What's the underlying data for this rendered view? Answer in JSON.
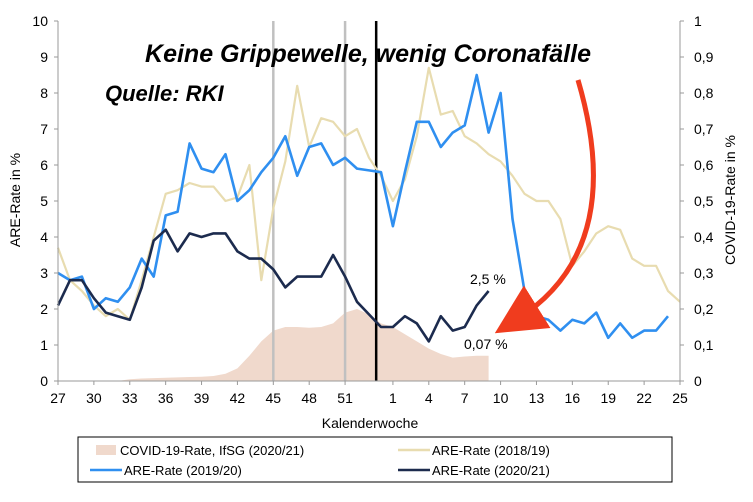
{
  "chart_data": {
    "type": "line",
    "title": "Keine Grippewelle, wenig Coronafälle",
    "subtitle": "Quelle: RKI",
    "xlabel": "Kalenderwoche",
    "ylabel_left": "ARE-Rate in %",
    "ylabel_right": "COVID-19-Rate in %",
    "ylim_left": [
      0,
      10
    ],
    "ylim_right": [
      0,
      1
    ],
    "y_ticks_left": [
      "0",
      "1",
      "2",
      "3",
      "4",
      "5",
      "6",
      "7",
      "8",
      "9",
      "10"
    ],
    "y_ticks_right": [
      "0",
      "0,1",
      "0,2",
      "0,3",
      "0,4",
      "0,5",
      "0,6",
      "0,7",
      "0,8",
      "0,9",
      "1"
    ],
    "x_weeks": [
      27,
      28,
      29,
      30,
      31,
      32,
      33,
      34,
      35,
      36,
      37,
      38,
      39,
      40,
      41,
      42,
      43,
      44,
      45,
      46,
      47,
      48,
      49,
      50,
      51,
      52,
      53,
      1,
      2,
      3,
      4,
      5,
      6,
      7,
      8,
      9,
      10,
      11,
      12,
      13,
      14,
      15,
      16,
      17,
      18,
      19,
      20,
      21,
      22,
      23,
      24,
      25,
      26
    ],
    "x_tick_labels": [
      "27",
      "30",
      "33",
      "36",
      "39",
      "42",
      "45",
      "48",
      "51",
      "1",
      "4",
      "7",
      "10",
      "13",
      "16",
      "19",
      "22",
      "25"
    ],
    "x_tick_index": [
      0,
      3,
      6,
      9,
      12,
      15,
      18,
      21,
      24,
      28,
      31,
      34,
      37,
      40,
      43,
      46,
      49,
      52
    ],
    "grid": false,
    "legend_position": "bottom",
    "series": [
      {
        "name": "COVID-19-Rate, IfSG (2020/21)",
        "kind": "area",
        "axis": "right",
        "color": "#f0d9cc",
        "values": [
          0.0,
          0.0,
          0.0,
          0.0,
          0.0,
          0.0,
          0.005,
          0.007,
          0.008,
          0.009,
          0.01,
          0.011,
          0.012,
          0.014,
          0.02,
          0.035,
          0.07,
          0.11,
          0.14,
          0.15,
          0.15,
          0.148,
          0.15,
          0.16,
          0.19,
          0.2,
          0.185,
          0.16,
          0.15,
          0.13,
          0.11,
          0.09,
          0.075,
          0.065,
          0.068,
          0.07,
          0.07,
          null,
          null,
          null,
          null,
          null,
          null,
          null,
          null,
          null,
          null,
          null,
          null,
          null,
          null,
          null,
          null
        ]
      },
      {
        "name": "ARE-Rate (2018/19)",
        "kind": "line",
        "axis": "left",
        "color": "#e8dcb0",
        "values": [
          3.7,
          2.8,
          2.5,
          2.1,
          1.8,
          2.0,
          1.7,
          2.8,
          4.0,
          5.2,
          5.3,
          5.5,
          5.4,
          5.4,
          5.0,
          5.1,
          6.0,
          2.8,
          4.8,
          6.1,
          8.2,
          6.5,
          7.3,
          7.2,
          6.8,
          7.0,
          6.2,
          5.7,
          5.0,
          5.6,
          6.8,
          8.7,
          7.4,
          7.5,
          6.8,
          6.6,
          6.3,
          6.1,
          5.7,
          5.2,
          5.0,
          5.0,
          4.5,
          3.2,
          3.6,
          4.1,
          4.3,
          4.2,
          3.4,
          3.2,
          3.2,
          2.5,
          2.2
        ]
      },
      {
        "name": "ARE-Rate (2019/20)",
        "kind": "line",
        "axis": "left",
        "color": "#2f8ff0",
        "values": [
          3.0,
          2.8,
          2.9,
          2.0,
          2.3,
          2.2,
          2.6,
          3.4,
          2.9,
          4.6,
          4.7,
          6.6,
          5.9,
          5.8,
          6.3,
          5.0,
          5.3,
          5.8,
          6.2,
          6.8,
          5.7,
          6.5,
          6.6,
          6.0,
          6.2,
          5.9,
          5.85,
          5.8,
          4.3,
          5.8,
          7.2,
          7.2,
          6.5,
          6.9,
          7.1,
          8.5,
          6.9,
          8.0,
          4.5,
          2.5,
          1.8,
          1.7,
          1.4,
          1.7,
          1.6,
          1.9,
          1.2,
          1.6,
          1.2,
          1.4,
          1.4,
          1.8,
          null
        ]
      },
      {
        "name": "ARE-Rate (2020/21)",
        "kind": "line",
        "axis": "left",
        "color": "#1c2b4e",
        "values": [
          2.1,
          2.8,
          2.8,
          2.3,
          1.9,
          1.8,
          1.7,
          2.6,
          3.9,
          4.2,
          3.6,
          4.1,
          4.0,
          4.1,
          4.1,
          3.6,
          3.4,
          3.4,
          3.1,
          2.6,
          2.9,
          2.9,
          2.9,
          3.5,
          2.9,
          2.2,
          1.85,
          1.5,
          1.5,
          1.8,
          1.6,
          1.1,
          1.8,
          1.4,
          1.5,
          2.1,
          2.5,
          null,
          null,
          null,
          null,
          null,
          null,
          null,
          null,
          null,
          null,
          null,
          null,
          null,
          null,
          null,
          null
        ]
      }
    ],
    "annotations": [
      {
        "text": "2,5 %",
        "color": "#000000"
      },
      {
        "text": "0,07 %",
        "color": "#000000"
      }
    ],
    "arrow_color": "#f03c1e",
    "vline_colors": {
      "gray": "#c0c0c0",
      "black": "#000000"
    }
  }
}
